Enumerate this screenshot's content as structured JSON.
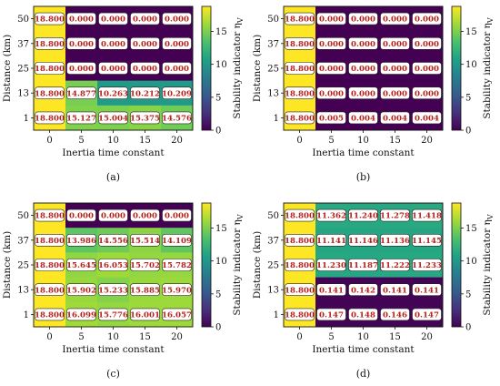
{
  "colorbar": {
    "label": "Stability indicator η",
    "label_subscript": "V",
    "ticks": [
      "0",
      "5",
      "10",
      "15"
    ],
    "range": [
      0,
      18.8
    ],
    "colormap": [
      "#440154",
      "#46327e",
      "#365c8d",
      "#277f8e",
      "#1fa187",
      "#4ac16d",
      "#a0da39",
      "#fde725"
    ]
  },
  "chart_data": [
    {
      "type": "heatmap",
      "caption": "(a)",
      "xlabel": "Inertia time constant",
      "ylabel": "Distance (km)",
      "x_ticks": [
        "0",
        "5",
        "10",
        "15",
        "20"
      ],
      "y_ticks": [
        "50",
        "37",
        "25",
        "13",
        "1"
      ],
      "values": [
        [
          18.8,
          0.0,
          0.0,
          0.0,
          0.0
        ],
        [
          18.8,
          0.0,
          0.0,
          0.0,
          0.0
        ],
        [
          18.8,
          0.0,
          0.0,
          0.0,
          0.0
        ],
        [
          18.8,
          14.877,
          10.263,
          10.212,
          10.209
        ],
        [
          18.8,
          15.127,
          15.004,
          15.375,
          14.576
        ]
      ],
      "labels": [
        [
          "18.800",
          "0.000",
          "0.000",
          "0.000",
          "0.000"
        ],
        [
          "18.800",
          "0.000",
          "0.000",
          "0.000",
          "0.000"
        ],
        [
          "18.800",
          "0.000",
          "0.000",
          "0.000",
          "0.000"
        ],
        [
          "18.800",
          "14.877",
          "10.263",
          "10.212",
          "10.209"
        ],
        [
          "18.800",
          "15.127",
          "15.004",
          "15.375",
          "14.576"
        ]
      ]
    },
    {
      "type": "heatmap",
      "caption": "(b)",
      "xlabel": "Inertia time constant",
      "ylabel": "Distance (km)",
      "x_ticks": [
        "0",
        "5",
        "10",
        "15",
        "20"
      ],
      "y_ticks": [
        "50",
        "37",
        "25",
        "13",
        "1"
      ],
      "values": [
        [
          18.8,
          0.0,
          0.0,
          0.0,
          0.0
        ],
        [
          18.8,
          0.0,
          0.0,
          0.0,
          0.0
        ],
        [
          18.8,
          0.0,
          0.0,
          0.0,
          0.0
        ],
        [
          18.8,
          0.0,
          0.0,
          0.0,
          0.0
        ],
        [
          18.8,
          0.005,
          0.004,
          0.004,
          0.004
        ]
      ],
      "labels": [
        [
          "18.800",
          "0.000",
          "0.000",
          "0.000",
          "0.000"
        ],
        [
          "18.800",
          "0.000",
          "0.000",
          "0.000",
          "0.000"
        ],
        [
          "18.800",
          "0.000",
          "0.000",
          "0.000",
          "0.000"
        ],
        [
          "18.800",
          "0.000",
          "0.000",
          "0.000",
          "0.000"
        ],
        [
          "18.800",
          "0.005",
          "0.004",
          "0.004",
          "0.004"
        ]
      ]
    },
    {
      "type": "heatmap",
      "caption": "(c)",
      "xlabel": "Inertia time constant",
      "ylabel": "Distance (km)",
      "x_ticks": [
        "0",
        "5",
        "10",
        "15",
        "20"
      ],
      "y_ticks": [
        "50",
        "37",
        "25",
        "13",
        "1"
      ],
      "values": [
        [
          18.8,
          0.0,
          0.0,
          0.0,
          0.0
        ],
        [
          18.8,
          13.986,
          14.556,
          15.514,
          14.109
        ],
        [
          18.8,
          15.645,
          16.053,
          15.702,
          15.782
        ],
        [
          18.8,
          15.902,
          15.233,
          15.885,
          15.97
        ],
        [
          18.8,
          16.099,
          15.776,
          16.001,
          16.057
        ]
      ],
      "labels": [
        [
          "18.800",
          "0.000",
          "0.000",
          "0.000",
          "0.000"
        ],
        [
          "18.800",
          "13.986",
          "14.556",
          "15.514",
          "14.109"
        ],
        [
          "18.800",
          "15.645",
          "16.053",
          "15.702",
          "15.782"
        ],
        [
          "18.800",
          "15.902",
          "15.233",
          "15.885",
          "15.970"
        ],
        [
          "18.800",
          "16.099",
          "15.776",
          "16.001",
          "16.057"
        ]
      ]
    },
    {
      "type": "heatmap",
      "caption": "(d)",
      "xlabel": "Inertia time constant",
      "ylabel": "Distance (km)",
      "x_ticks": [
        "0",
        "5",
        "10",
        "15",
        "20"
      ],
      "y_ticks": [
        "50",
        "37",
        "25",
        "13",
        "1"
      ],
      "values": [
        [
          18.8,
          11.362,
          11.24,
          11.278,
          11.418
        ],
        [
          18.8,
          11.141,
          11.146,
          11.136,
          11.145
        ],
        [
          18.8,
          11.23,
          11.187,
          11.222,
          11.233
        ],
        [
          18.8,
          0.141,
          0.142,
          0.141,
          0.141
        ],
        [
          18.8,
          0.147,
          0.148,
          0.146,
          0.147
        ]
      ],
      "labels": [
        [
          "18.800",
          "11.362",
          "11.240",
          "11.278",
          "11.418"
        ],
        [
          "18.800",
          "11.141",
          "11.146",
          "11.136",
          "11.145"
        ],
        [
          "18.800",
          "11.230",
          "11.187",
          "11.222",
          "11.233"
        ],
        [
          "18.800",
          "0.141",
          "0.142",
          "0.141",
          "0.141"
        ],
        [
          "18.800",
          "0.147",
          "0.148",
          "0.146",
          "0.147"
        ]
      ]
    }
  ]
}
